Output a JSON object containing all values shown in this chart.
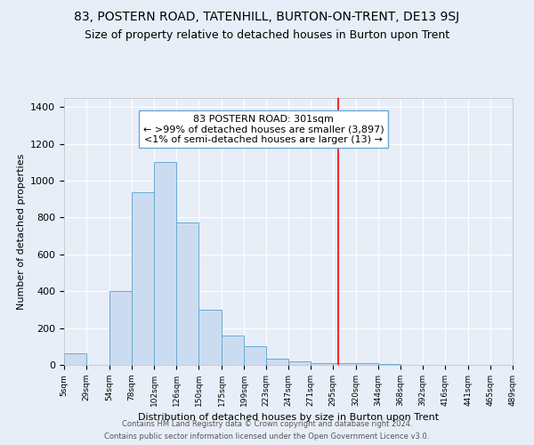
{
  "title": "83, POSTERN ROAD, TATENHILL, BURTON-ON-TRENT, DE13 9SJ",
  "subtitle": "Size of property relative to detached houses in Burton upon Trent",
  "xlabel": "Distribution of detached houses by size in Burton upon Trent",
  "ylabel": "Number of detached properties",
  "bar_edges": [
    5,
    29,
    54,
    78,
    102,
    126,
    150,
    175,
    199,
    223,
    247,
    271,
    295,
    320,
    344,
    368,
    392,
    416,
    441,
    465,
    489
  ],
  "bar_heights": [
    65,
    0,
    400,
    940,
    1100,
    775,
    300,
    160,
    100,
    35,
    20,
    10,
    10,
    10,
    5,
    0,
    0,
    0,
    0,
    0
  ],
  "bar_color": "#ccdcf0",
  "bar_edge_color": "#6aaad4",
  "red_line_x": 301,
  "annotation_line1": "83 POSTERN ROAD: 301sqm",
  "annotation_line2": "← >99% of detached houses are smaller (3,897)",
  "annotation_line3": "<1% of semi-detached houses are larger (13) →",
  "annotation_box_color": "white",
  "annotation_box_edge": "#6aaad4",
  "ylim": [
    0,
    1450
  ],
  "yticks": [
    0,
    200,
    400,
    600,
    800,
    1000,
    1200,
    1400
  ],
  "bg_color": "#e8eef8",
  "grid_color": "white",
  "footer1": "Contains HM Land Registry data © Crown copyright and database right 2024.",
  "footer2": "Contains public sector information licensed under the Open Government Licence v3.0.",
  "title_fontsize": 10,
  "subtitle_fontsize": 9,
  "xlabel_fontsize": 8,
  "ylabel_fontsize": 8,
  "footer_fontsize": 6,
  "annotation_fontsize": 8
}
